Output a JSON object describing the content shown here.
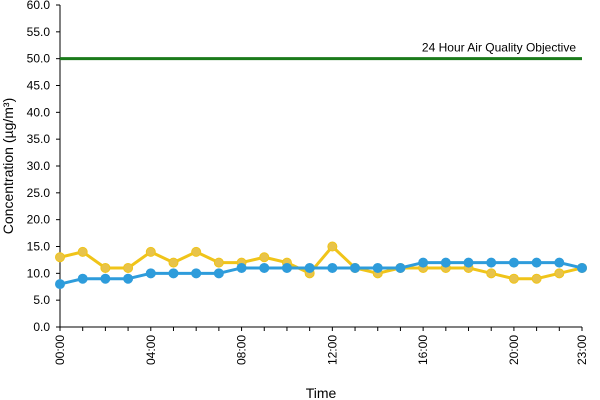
{
  "chart_data": {
    "type": "line",
    "title": "",
    "xlabel": "Time",
    "ylabel": "Concentration (µg/m³)",
    "ylim": [
      0,
      60
    ],
    "y_ticks": [
      "0.0",
      "5.0",
      "10.0",
      "15.0",
      "20.0",
      "25.0",
      "30.0",
      "35.0",
      "40.0",
      "45.0",
      "50.0",
      "55.0",
      "60.0"
    ],
    "x": [
      "00:00",
      "01:00",
      "02:00",
      "03:00",
      "04:00",
      "05:00",
      "06:00",
      "07:00",
      "08:00",
      "09:00",
      "10:00",
      "11:00",
      "12:00",
      "13:00",
      "14:00",
      "15:00",
      "16:00",
      "17:00",
      "18:00",
      "19:00",
      "20:00",
      "21:00",
      "22:00",
      "23:00"
    ],
    "x_tick_labels": [
      "00:00",
      "04:00",
      "08:00",
      "12:00",
      "16:00",
      "20:00",
      "23:00"
    ],
    "series": [
      {
        "color": "#f0c419",
        "marker_fill": "#e8c34a",
        "values": [
          13,
          14,
          11,
          11,
          14,
          12,
          14,
          12,
          12,
          13,
          12,
          10,
          15,
          11,
          10,
          11,
          11,
          11,
          11,
          10,
          9,
          9,
          10,
          11
        ]
      },
      {
        "color": "#2e9cdb",
        "marker_fill": "#2e9cdb",
        "values": [
          8,
          9,
          9,
          9,
          10,
          10,
          10,
          10,
          11,
          11,
          11,
          11,
          11,
          11,
          11,
          11,
          12,
          12,
          12,
          12,
          12,
          12,
          12,
          11
        ]
      }
    ],
    "reference_line": {
      "value": 50,
      "label": "24 Hour Air Quality Objective",
      "color": "#1a7a1a"
    },
    "grid": false,
    "legend": "none"
  }
}
